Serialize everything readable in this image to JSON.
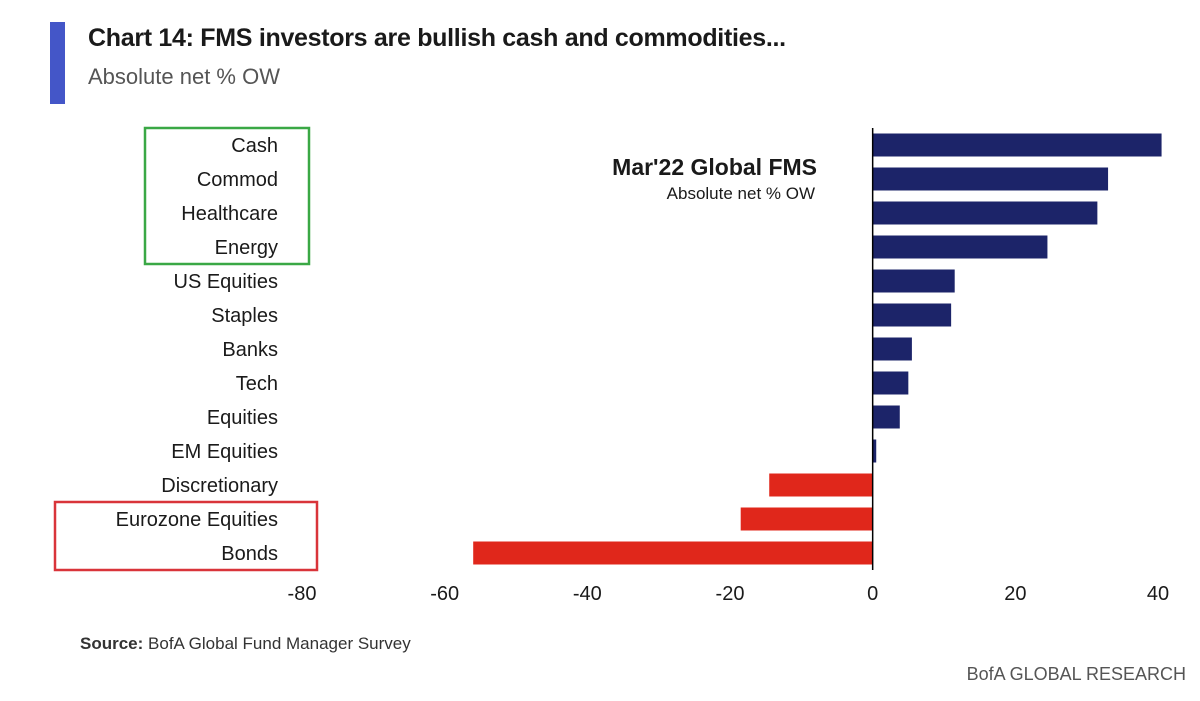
{
  "header": {
    "title": "Chart 14: FMS investors are bullish cash and commodities...",
    "subtitle": "Absolute net % OW",
    "accent_color": "#4456c8"
  },
  "chart_data": {
    "type": "bar",
    "orientation": "horizontal",
    "inner_title": "Mar'22 Global FMS",
    "inner_subtitle": "Absolute net % OW",
    "categories": [
      "Cash",
      "Commod",
      "Healthcare",
      "Energy",
      "US Equities",
      "Staples",
      "Banks",
      "Tech",
      "Equities",
      "EM Equities",
      "Discretionary",
      "Eurozone Equities",
      "Bonds"
    ],
    "values": [
      40.5,
      33,
      31.5,
      24.5,
      11.5,
      11,
      5.5,
      5,
      3.8,
      0.5,
      -14.5,
      -18.5,
      -56
    ],
    "xlim": [
      -80,
      40
    ],
    "xticks": [
      -80,
      -60,
      -40,
      -20,
      0,
      20,
      40
    ],
    "positive_color": "#1c2469",
    "negative_color": "#e0271b",
    "highlight_groups": [
      {
        "color": "#3aa845",
        "categories": [
          "Cash",
          "Commod",
          "Healthcare",
          "Energy"
        ]
      },
      {
        "color": "#d9343a",
        "categories": [
          "Eurozone Equities",
          "Bonds"
        ]
      }
    ],
    "grid": false
  },
  "footer": {
    "source_label": "Source:",
    "source_text": "BofA Global Fund Manager Survey",
    "brand": "BofA GLOBAL RESEARCH"
  }
}
